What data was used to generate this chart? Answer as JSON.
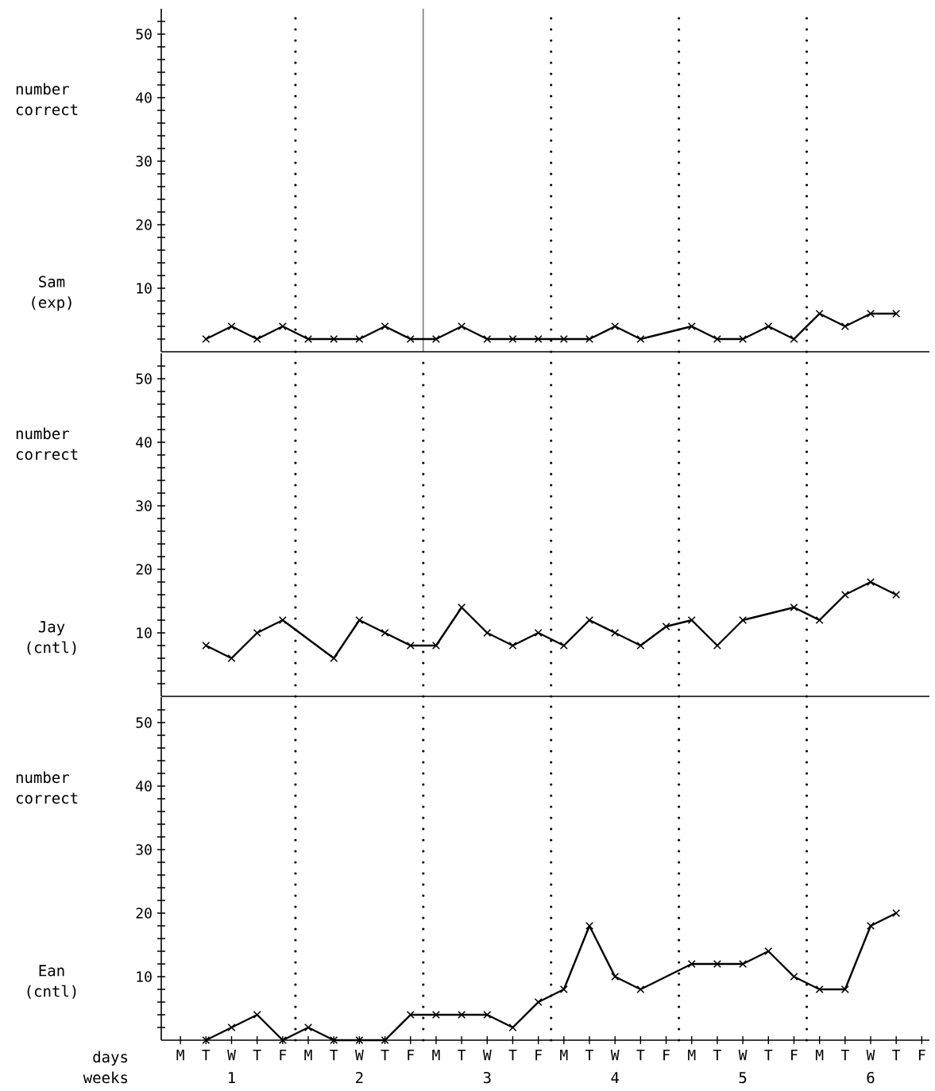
{
  "chart_data": [
    {
      "type": "line",
      "title": "Sam (exp)",
      "ylabel": "number correct",
      "categories": [
        null,
        null,
        null,
        null,
        null,
        null,
        null,
        null,
        null,
        null,
        null,
        null,
        null,
        null,
        null,
        null,
        null,
        null,
        null,
        null,
        null,
        null,
        null,
        null,
        null,
        null,
        null,
        null,
        null,
        null
      ],
      "series": [
        {
          "color": "#000000",
          "values": [
            null,
            2,
            4,
            2,
            4,
            2,
            2,
            2,
            4,
            2,
            2,
            4,
            2,
            2,
            2,
            2,
            2,
            4,
            2,
            null,
            4,
            2,
            2,
            4,
            2,
            6,
            4,
            6,
            6,
            null
          ]
        }
      ],
      "ylim": [
        0,
        54
      ],
      "yticks": [
        {
          "value": 2,
          "label": null
        },
        {
          "value": 4,
          "label": null
        },
        {
          "value": 6,
          "label": null
        },
        {
          "value": 8,
          "label": null
        },
        10,
        {
          "value": 12,
          "label": null
        },
        {
          "value": 14,
          "label": null
        },
        {
          "value": 16,
          "label": null
        },
        {
          "value": 18,
          "label": null
        },
        20,
        {
          "value": 22,
          "label": null
        },
        {
          "value": 24,
          "label": null
        },
        {
          "value": 26,
          "label": null
        },
        {
          "value": 28,
          "label": null
        },
        30,
        {
          "value": 32,
          "label": null
        },
        {
          "value": 34,
          "label": null
        },
        {
          "value": 36,
          "label": null
        },
        {
          "value": 38,
          "label": null
        },
        40,
        {
          "value": 42,
          "label": null
        },
        {
          "value": 44,
          "label": null
        },
        {
          "value": 46,
          "label": null
        },
        {
          "value": 48,
          "label": null
        },
        50,
        {
          "value": 52,
          "label": null
        }
      ],
      "marker": "cross",
      "line_style": "solid",
      "tick_labels": "y"
    },
    {
      "type": "line",
      "title": "Jay (cntl)",
      "ylabel": "number correct",
      "categories": [
        null,
        null,
        null,
        null,
        null,
        null,
        null,
        null,
        null,
        null,
        null,
        null,
        null,
        null,
        null,
        null,
        null,
        null,
        null,
        null,
        null,
        null,
        null,
        null,
        null,
        null,
        null,
        null,
        null,
        null
      ],
      "series": [
        {
          "color": "#000000",
          "values": [
            null,
            8,
            6,
            10,
            12,
            null,
            6,
            12,
            10,
            8,
            8,
            14,
            10,
            8,
            10,
            8,
            12,
            10,
            8,
            11,
            12,
            8,
            12,
            null,
            14,
            12,
            16,
            18,
            16,
            null
          ]
        }
      ],
      "ylim": [
        0,
        54
      ],
      "yticks": [
        {
          "value": 2,
          "label": null
        },
        {
          "value": 4,
          "label": null
        },
        {
          "value": 6,
          "label": null
        },
        {
          "value": 8,
          "label": null
        },
        10,
        {
          "value": 12,
          "label": null
        },
        {
          "value": 14,
          "label": null
        },
        {
          "value": 16,
          "label": null
        },
        {
          "value": 18,
          "label": null
        },
        20,
        {
          "value": 22,
          "label": null
        },
        {
          "value": 24,
          "label": null
        },
        {
          "value": 26,
          "label": null
        },
        {
          "value": 28,
          "label": null
        },
        30,
        {
          "value": 32,
          "label": null
        },
        {
          "value": 34,
          "label": null
        },
        {
          "value": 36,
          "label": null
        },
        {
          "value": 38,
          "label": null
        },
        40,
        {
          "value": 42,
          "label": null
        },
        {
          "value": 44,
          "label": null
        },
        {
          "value": 46,
          "label": null
        },
        {
          "value": 48,
          "label": null
        },
        50,
        {
          "value": 52,
          "label": null
        }
      ],
      "marker": "cross",
      "line_style": "solid",
      "tick_labels": "y"
    },
    {
      "type": "line",
      "title": "Ean (cntl)",
      "ylabel": "number correct",
      "xlabel": "days",
      "annotations": [
        "weeks",
        "1",
        "2",
        "3",
        "4",
        "5",
        "6"
      ],
      "categories": [
        "M",
        "T",
        "W",
        "T",
        "F",
        "M",
        "T",
        "W",
        "T",
        "F",
        "M",
        "T",
        "W",
        "T",
        "F",
        "M",
        "T",
        "W",
        "T",
        "F",
        "M",
        "T",
        "W",
        "T",
        "F",
        "M",
        "T",
        "W",
        "T",
        "F"
      ],
      "series": [
        {
          "color": "#000000",
          "values": [
            null,
            0,
            2,
            4,
            0,
            2,
            0,
            0,
            0,
            4,
            4,
            4,
            4,
            2,
            6,
            8,
            18,
            10,
            8,
            null,
            12,
            12,
            12,
            14,
            10,
            8,
            8,
            18,
            20,
            null
          ]
        }
      ],
      "ylim": [
        0,
        54
      ],
      "yticks": [
        {
          "value": 2,
          "label": null
        },
        {
          "value": 4,
          "label": null
        },
        {
          "value": 6,
          "label": null
        },
        {
          "value": 8,
          "label": null
        },
        10,
        {
          "value": 12,
          "label": null
        },
        {
          "value": 14,
          "label": null
        },
        {
          "value": 16,
          "label": null
        },
        {
          "value": 18,
          "label": null
        },
        20,
        {
          "value": 22,
          "label": null
        },
        {
          "value": 24,
          "label": null
        },
        {
          "value": 26,
          "label": null
        },
        {
          "value": 28,
          "label": null
        },
        30,
        {
          "value": 32,
          "label": null
        },
        {
          "value": 34,
          "label": null
        },
        {
          "value": 36,
          "label": null
        },
        {
          "value": 38,
          "label": null
        },
        40,
        {
          "value": 42,
          "label": null
        },
        {
          "value": 44,
          "label": null
        },
        {
          "value": 46,
          "label": null
        },
        {
          "value": 48,
          "label": null
        },
        50,
        {
          "value": 52,
          "label": null
        }
      ],
      "marker": "cross",
      "line_style": "solid"
    }
  ]
}
